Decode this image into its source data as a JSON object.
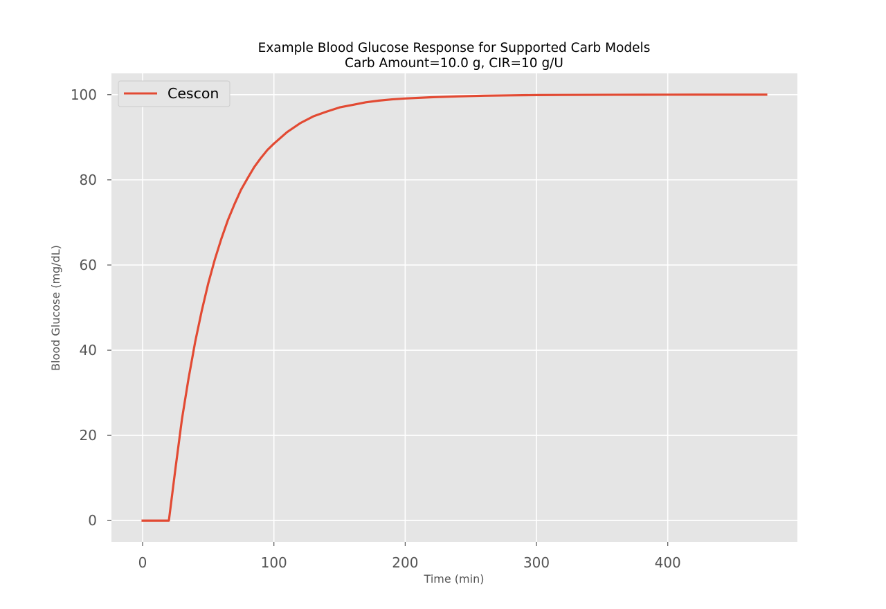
{
  "chart_data": {
    "type": "line",
    "title": "Example Blood Glucose Response for Supported Carb Models",
    "subtitle": "Carb Amount=10.0 g, CIR=10 g/U",
    "xlabel": "Time (min)",
    "ylabel": "Blood Glucose (mg/dL)",
    "xlim": [
      -23.75,
      498.75
    ],
    "ylim": [
      -5,
      105
    ],
    "xticks": [
      0,
      100,
      200,
      300,
      400
    ],
    "xtick_labels": [
      "0",
      "100",
      "200",
      "300",
      "400"
    ],
    "yticks": [
      0,
      20,
      40,
      60,
      80,
      100
    ],
    "ytick_labels": [
      "0",
      "20",
      "40",
      "60",
      "80",
      "100"
    ],
    "grid": true,
    "legend_position": "upper-left",
    "colors": {
      "plot_background": "#e5e5e5",
      "grid": "#ffffff",
      "series": "#e24a33",
      "tick_text": "#555555"
    },
    "series": [
      {
        "name": "Cescon",
        "color": "#e24a33",
        "x": [
          0,
          5,
          10,
          15,
          20,
          25,
          30,
          35,
          40,
          45,
          50,
          55,
          60,
          65,
          70,
          75,
          80,
          85,
          90,
          95,
          100,
          110,
          120,
          130,
          140,
          150,
          160,
          170,
          180,
          190,
          200,
          220,
          240,
          260,
          280,
          300,
          320,
          340,
          360,
          380,
          400,
          420,
          440,
          460,
          475
        ],
        "y": [
          0,
          0,
          0,
          0,
          0,
          12.2,
          23.9,
          33.4,
          41.9,
          49.2,
          55.7,
          61.3,
          66.2,
          70.6,
          74.3,
          77.7,
          80.4,
          83.0,
          85.1,
          87.0,
          88.5,
          91.2,
          93.3,
          94.9,
          96.0,
          97.0,
          97.6,
          98.2,
          98.6,
          98.9,
          99.1,
          99.4,
          99.6,
          99.75,
          99.83,
          99.9,
          99.93,
          99.95,
          99.97,
          99.98,
          99.99,
          100,
          100,
          100,
          100
        ]
      }
    ]
  }
}
